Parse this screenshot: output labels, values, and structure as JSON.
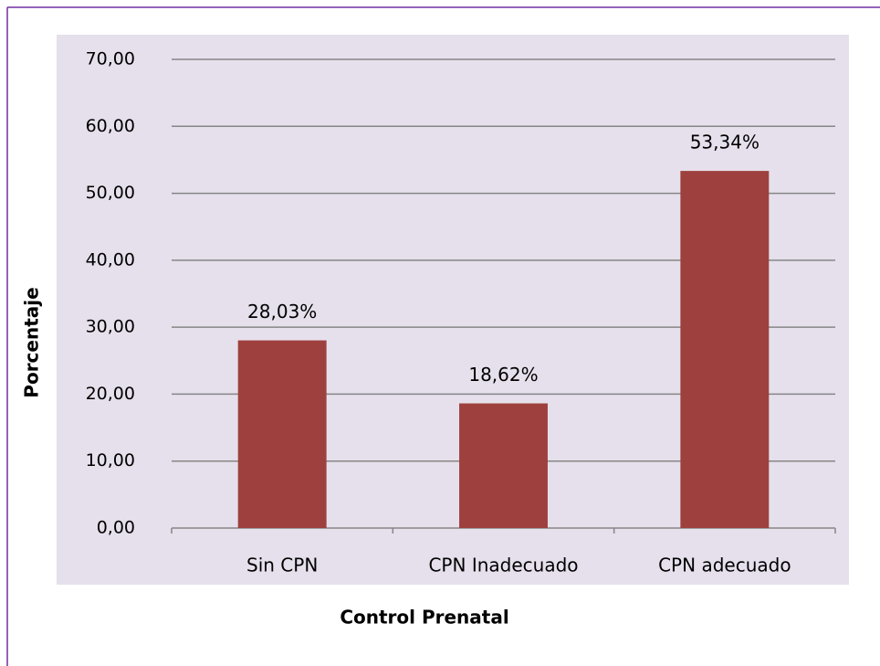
{
  "chart_data": {
    "type": "bar",
    "x_label": "Control Prenatal",
    "y_label": "Porcentaje",
    "categories": [
      "Sin CPN",
      "CPN Inadecuado",
      "CPN adecuado"
    ],
    "values": [
      28.03,
      18.62,
      53.34
    ],
    "value_labels": [
      "28,03%",
      "18,62%",
      "53,34%"
    ],
    "color": "#9e413e",
    "ylim": [
      0,
      70
    ],
    "yticks": [
      {
        "value": 0,
        "label": "0,00"
      },
      {
        "value": 10,
        "label": "10,00"
      },
      {
        "value": 20,
        "label": "20,00"
      },
      {
        "value": 30,
        "label": "30,00"
      },
      {
        "value": 40,
        "label": "40,00"
      },
      {
        "value": 50,
        "label": "50,00"
      },
      {
        "value": 60,
        "label": "60,00"
      },
      {
        "value": 70,
        "label": "70,00"
      }
    ],
    "grid": true
  }
}
